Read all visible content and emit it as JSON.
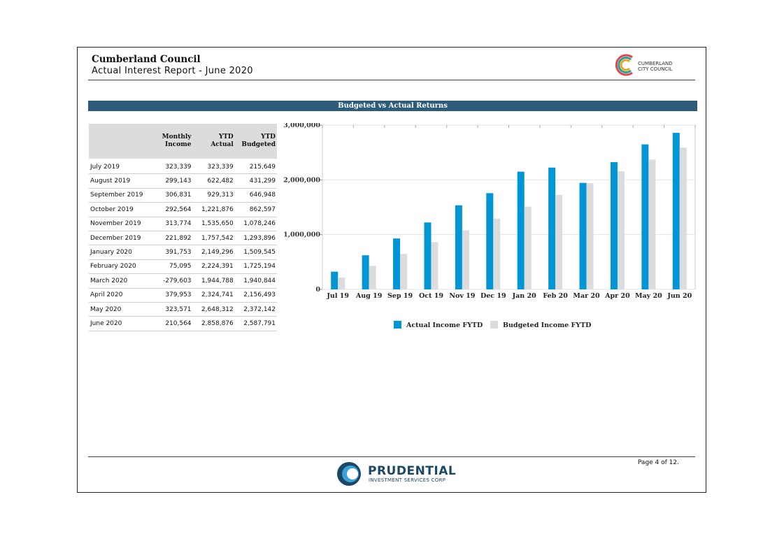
{
  "header": {
    "title": "Cumberland Council",
    "subtitle": "Actual Interest Report - June 2020",
    "logo_text_1": "CUMBERLAND",
    "logo_text_2": "CITY COUNCIL"
  },
  "banner": "Budgeted vs Actual Returns",
  "table": {
    "columns": [
      "",
      "Monthly Income",
      "YTD Actual",
      "YTD Budgeted"
    ],
    "rows": [
      [
        "July 2019",
        "323,339",
        "323,339",
        "215,649"
      ],
      [
        "August 2019",
        "299,143",
        "622,482",
        "431,299"
      ],
      [
        "September 2019",
        "306,831",
        "929,313",
        "646,948"
      ],
      [
        "October 2019",
        "292,564",
        "1,221,876",
        "862,597"
      ],
      [
        "November 2019",
        "313,774",
        "1,535,650",
        "1,078,246"
      ],
      [
        "December 2019",
        "221,892",
        "1,757,542",
        "1,293,896"
      ],
      [
        "January 2020",
        "391,753",
        "2,149,296",
        "1,509,545"
      ],
      [
        "February 2020",
        "75,095",
        "2,224,391",
        "1,725,194"
      ],
      [
        "March 2020",
        "-279,603",
        "1,944,788",
        "1,940,844"
      ],
      [
        "April 2020",
        "379,953",
        "2,324,741",
        "2,156,493"
      ],
      [
        "May 2020",
        "323,571",
        "2,648,312",
        "2,372,142"
      ],
      [
        "June 2020",
        "210,564",
        "2,858,876",
        "2,587,791"
      ]
    ]
  },
  "chart_data": {
    "type": "bar",
    "categories": [
      "Jul 19",
      "Aug 19",
      "Sep 19",
      "Oct 19",
      "Nov 19",
      "Dec 19",
      "Jan 20",
      "Feb 20",
      "Mar 20",
      "Apr 20",
      "May 20",
      "Jun 20"
    ],
    "series": [
      {
        "name": "Actual Income FYTD",
        "color": "#0096d6",
        "values": [
          323339,
          622482,
          929313,
          1221876,
          1535650,
          1757542,
          2149296,
          2224391,
          1944788,
          2324741,
          2648312,
          2858876
        ]
      },
      {
        "name": "Budgeted Income FYTD",
        "color": "#dcdcdc",
        "values": [
          215649,
          431299,
          646948,
          862597,
          1078246,
          1293896,
          1509545,
          1725194,
          1940844,
          2156493,
          2372142,
          2587791
        ]
      }
    ],
    "y_ticks": [
      "0",
      "1,000,000",
      "2,000,000",
      "3,000,000"
    ],
    "ylim": [
      0,
      3000000
    ],
    "legend": "bottom",
    "grid": true
  },
  "footer": {
    "page": "Page 4 of 12.",
    "company": "PRUDENTIAL",
    "company_sub": "INVESTMENT SERVICES CORP"
  }
}
